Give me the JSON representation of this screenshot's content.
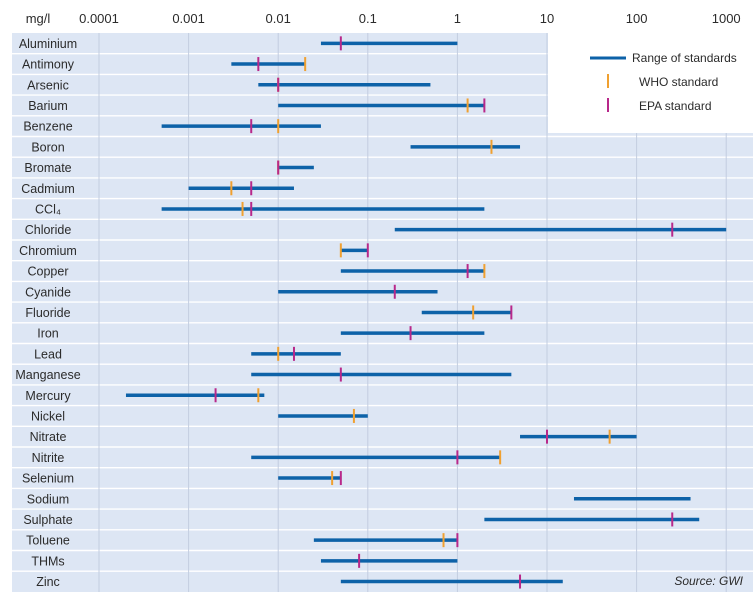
{
  "chart_data": {
    "type": "range-bar",
    "unit_label": "mg/l",
    "x_scale": "log",
    "x_range": [
      0.0001,
      1000
    ],
    "x_ticks": [
      {
        "value": 0.0001,
        "label": "0.0001"
      },
      {
        "value": 0.001,
        "label": "0.001"
      },
      {
        "value": 0.01,
        "label": "0.01"
      },
      {
        "value": 0.1,
        "label": "0.1"
      },
      {
        "value": 1,
        "label": "1"
      },
      {
        "value": 10,
        "label": "10"
      },
      {
        "value": 100,
        "label": "100"
      },
      {
        "value": 1000,
        "label": "1000"
      }
    ],
    "grid": true,
    "legend_position": "top-right",
    "legend": [
      {
        "key": "range",
        "label": "Range of standards",
        "color": "#0d62a8"
      },
      {
        "key": "who",
        "label": "WHO standard",
        "color": "#f0a030"
      },
      {
        "key": "epa",
        "label": "EPA standard",
        "color": "#b8288a"
      }
    ],
    "source": "Source: GWI",
    "colors": {
      "background": "#dde6f4",
      "grid": "#c3cde0",
      "range": "#0d62a8",
      "who": "#f0a030",
      "epa": "#b8288a"
    },
    "rows": [
      {
        "name": "Aluminium",
        "min": 0.03,
        "max": 1,
        "who": null,
        "epa": 0.05
      },
      {
        "name": "Antimony",
        "min": 0.003,
        "max": 0.02,
        "who": 0.02,
        "epa": 0.006
      },
      {
        "name": "Arsenic",
        "min": 0.006,
        "max": 0.5,
        "who": 0.01,
        "epa": 0.01
      },
      {
        "name": "Barium",
        "min": 0.01,
        "max": 2,
        "who": 1.3,
        "epa": 2
      },
      {
        "name": "Benzene",
        "min": 0.0005,
        "max": 0.03,
        "who": 0.01,
        "epa": 0.005
      },
      {
        "name": "Boron",
        "min": 0.3,
        "max": 5,
        "who": 2.4,
        "epa": null
      },
      {
        "name": "Bromate",
        "min": 0.01,
        "max": 0.025,
        "who": 0.01,
        "epa": 0.01
      },
      {
        "name": "Cadmium",
        "min": 0.001,
        "max": 0.015,
        "who": 0.003,
        "epa": 0.005
      },
      {
        "name": "CCl₄",
        "min": 0.0005,
        "max": 2,
        "who": 0.004,
        "epa": 0.005
      },
      {
        "name": "Chloride",
        "min": 0.2,
        "max": 1000,
        "who": null,
        "epa": 250
      },
      {
        "name": "Chromium",
        "min": 0.05,
        "max": 0.1,
        "who": 0.05,
        "epa": 0.1
      },
      {
        "name": "Copper",
        "min": 0.05,
        "max": 2,
        "who": 2,
        "epa": 1.3
      },
      {
        "name": "Cyanide",
        "min": 0.01,
        "max": 0.6,
        "who": null,
        "epa": 0.2
      },
      {
        "name": "Fluoride",
        "min": 0.4,
        "max": 4,
        "who": 1.5,
        "epa": 4
      },
      {
        "name": "Iron",
        "min": 0.05,
        "max": 2,
        "who": null,
        "epa": 0.3
      },
      {
        "name": "Lead",
        "min": 0.005,
        "max": 0.05,
        "who": 0.01,
        "epa": 0.015
      },
      {
        "name": "Manganese",
        "min": 0.005,
        "max": 4,
        "who": null,
        "epa": 0.05
      },
      {
        "name": "Mercury",
        "min": 0.0002,
        "max": 0.007,
        "who": 0.006,
        "epa": 0.002
      },
      {
        "name": "Nickel",
        "min": 0.01,
        "max": 0.1,
        "who": 0.07,
        "epa": null
      },
      {
        "name": "Nitrate",
        "min": 5,
        "max": 100,
        "who": 50,
        "epa": 10
      },
      {
        "name": "Nitrite",
        "min": 0.005,
        "max": 3,
        "who": 3,
        "epa": 1
      },
      {
        "name": "Selenium",
        "min": 0.01,
        "max": 0.05,
        "who": 0.04,
        "epa": 0.05
      },
      {
        "name": "Sodium",
        "min": 20,
        "max": 400,
        "who": null,
        "epa": null
      },
      {
        "name": "Sulphate",
        "min": 2,
        "max": 500,
        "who": null,
        "epa": 250
      },
      {
        "name": "Toluene",
        "min": 0.025,
        "max": 1,
        "who": 0.7,
        "epa": 1
      },
      {
        "name": "THMs",
        "min": 0.03,
        "max": 1,
        "who": null,
        "epa": 0.08
      },
      {
        "name": "Zinc",
        "min": 0.05,
        "max": 15,
        "who": null,
        "epa": 5
      }
    ]
  }
}
